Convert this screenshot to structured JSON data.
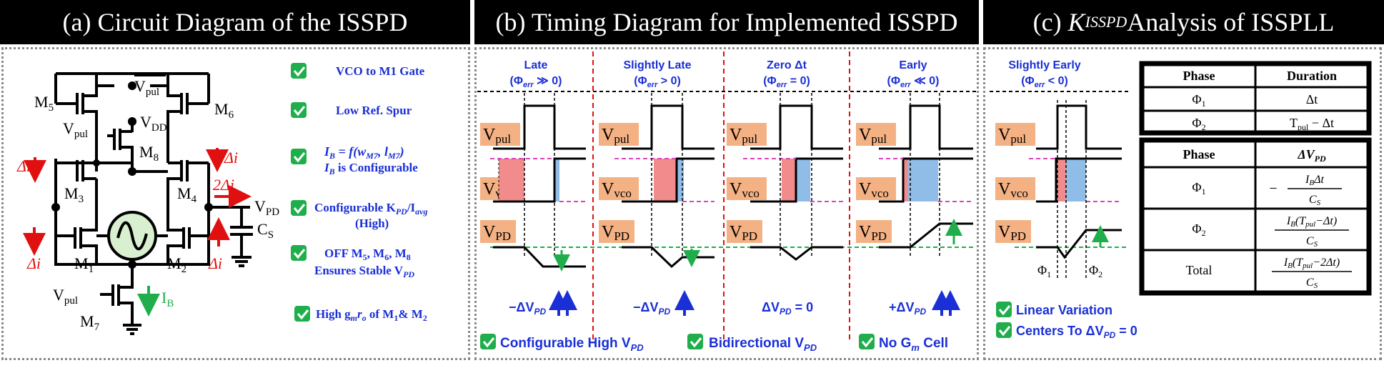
{
  "headers": {
    "a": "(a) Circuit Diagram of the ISSPD",
    "b": "(b) Timing Diagram for Implemented ISSPD",
    "c_prefix": "(c) ",
    "c_k": "K",
    "c_sub": "ISSPD",
    "c_suffix": " Analysis of ISSPLL"
  },
  "circuit": {
    "labels": {
      "m1": "M",
      "m1s": "1",
      "m2": "M",
      "m2s": "2",
      "m3": "M",
      "m3s": "3",
      "m4": "M",
      "m4s": "4",
      "m5": "M",
      "m5s": "5",
      "m6": "M",
      "m6s": "6",
      "m7": "M",
      "m7s": "7",
      "m8": "M",
      "m8s": "8",
      "vpul_top": "V",
      "vpul_top_s": "pul",
      "vdd": "V",
      "vdd_s": "DD",
      "vpul_m8": "V",
      "vpul_m8_s": "pul",
      "vpul_m7": "V",
      "vpul_m7_s": "pul",
      "vpd": "V",
      "vpd_s": "PD",
      "cs": "C",
      "cs_s": "S",
      "ib": "I",
      "ib_s": "B",
      "di_left_top": "Δi",
      "di_right_top": "Δi",
      "two_di": "2Δi",
      "di_left_bot": "Δi",
      "di_right_bot": "Δi"
    },
    "checks": [
      {
        "text": "VCO to M1 Gate"
      },
      {
        "text": "Low Ref. Spur"
      },
      {
        "text1": "I",
        "sub1": "B",
        "text1b": " = f(w",
        "sub1b": "M7",
        "text1c": ", l",
        "sub1c": "M7",
        "text1d": ")",
        "text2": "I",
        "sub2": "B",
        "text2b": " is Configurable"
      },
      {
        "text1": "Configurable K",
        "sub1": "PD",
        "text1b": "/I",
        "sub1b": "avg",
        "text2": "(High)"
      },
      {
        "text1": "OFF M",
        "sub1": "5",
        "text1b": ", M",
        "sub1b": "6",
        "text1c": ", M",
        "sub1c": "8",
        "text2": "Ensures Stable V",
        "sub2": "PD"
      },
      {
        "text": "High g",
        "sub": "m",
        "textb": "r",
        "subb": "o",
        "textc": " of M",
        "subc": "1",
        "textd": "& M",
        "subd": "2"
      }
    ]
  },
  "timing": {
    "columns": [
      {
        "title": "Late",
        "phase": "(Φ",
        "sub": "err",
        "rel": " ≫ 0)",
        "result": "−ΔV",
        "result_sub": "PD"
      },
      {
        "title": "Slightly Late",
        "phase": "(Φ",
        "sub": "err",
        "rel": " > 0)",
        "result": "−ΔV",
        "result_sub": "PD"
      },
      {
        "title": "Zero Δt",
        "phase": "(Φ",
        "sub": "err",
        "rel": " = 0)",
        "result": "ΔV",
        "result_sub": "PD",
        "result_tail": " = 0"
      },
      {
        "title": "Early",
        "phase": "(Φ",
        "sub": "err",
        "rel": " ≪ 0)",
        "result": "+ΔV",
        "result_sub": "PD"
      }
    ],
    "signals": {
      "vpul": "V",
      "vpul_s": "pul",
      "vvco": "V",
      "vvco_s": "vco",
      "vpd": "V",
      "vpd_s": "PD"
    },
    "footer": [
      {
        "text": "Configurable High V",
        "sub": "PD"
      },
      {
        "text": "Bidirectional V",
        "sub": "PD"
      },
      {
        "text": "No G",
        "sub": "m",
        "tail": " Cell"
      }
    ]
  },
  "analysis": {
    "column": {
      "title": "Slightly Early",
      "phase": "(Φ",
      "sub": "err",
      "rel": " < 0)"
    },
    "phi1": "Φ",
    "phi1_s": "1",
    "phi2": "Φ",
    "phi2_s": "2",
    "checks": [
      {
        "text": "Linear Variation"
      },
      {
        "text": "Centers To ΔV",
        "sub": "PD",
        "tail": " = 0"
      }
    ],
    "table1": {
      "headers": [
        "Phase",
        "Duration"
      ],
      "rows": [
        {
          "phase": "Φ",
          "phase_s": "1",
          "value": "Δt"
        },
        {
          "phase": "Φ",
          "phase_s": "2",
          "value": "T",
          "value_s": "pul",
          "value_tail": " − Δt"
        }
      ]
    },
    "table2": {
      "headers": [
        "Phase",
        "ΔV",
        "PD"
      ],
      "rows": [
        {
          "phase": "Φ",
          "phase_s": "1",
          "num": "I",
          "num_s": "B",
          "num_tail": "Δt",
          "den": "C",
          "den_s": "S",
          "sign": "−"
        },
        {
          "phase": "Φ",
          "phase_s": "2",
          "num": "I",
          "num_s": "B",
          "num_tail": "(T",
          "num_s2": "pul",
          "num_tail2": "−Δt)",
          "den": "C",
          "den_s": "S"
        },
        {
          "phase": "Total",
          "num": "I",
          "num_s": "B",
          "num_tail": "(T",
          "num_s2": "pul",
          "num_tail2": "−2Δt)",
          "den": "C",
          "den_s": "S"
        }
      ]
    }
  },
  "colors": {
    "blue": "#1a2fd6",
    "red": "#e01010",
    "green": "#1fae4b",
    "pink": "#f28b8b",
    "lightblue": "#8fbde8",
    "salmon": "#f4b183",
    "magenta": "#e040c0"
  }
}
